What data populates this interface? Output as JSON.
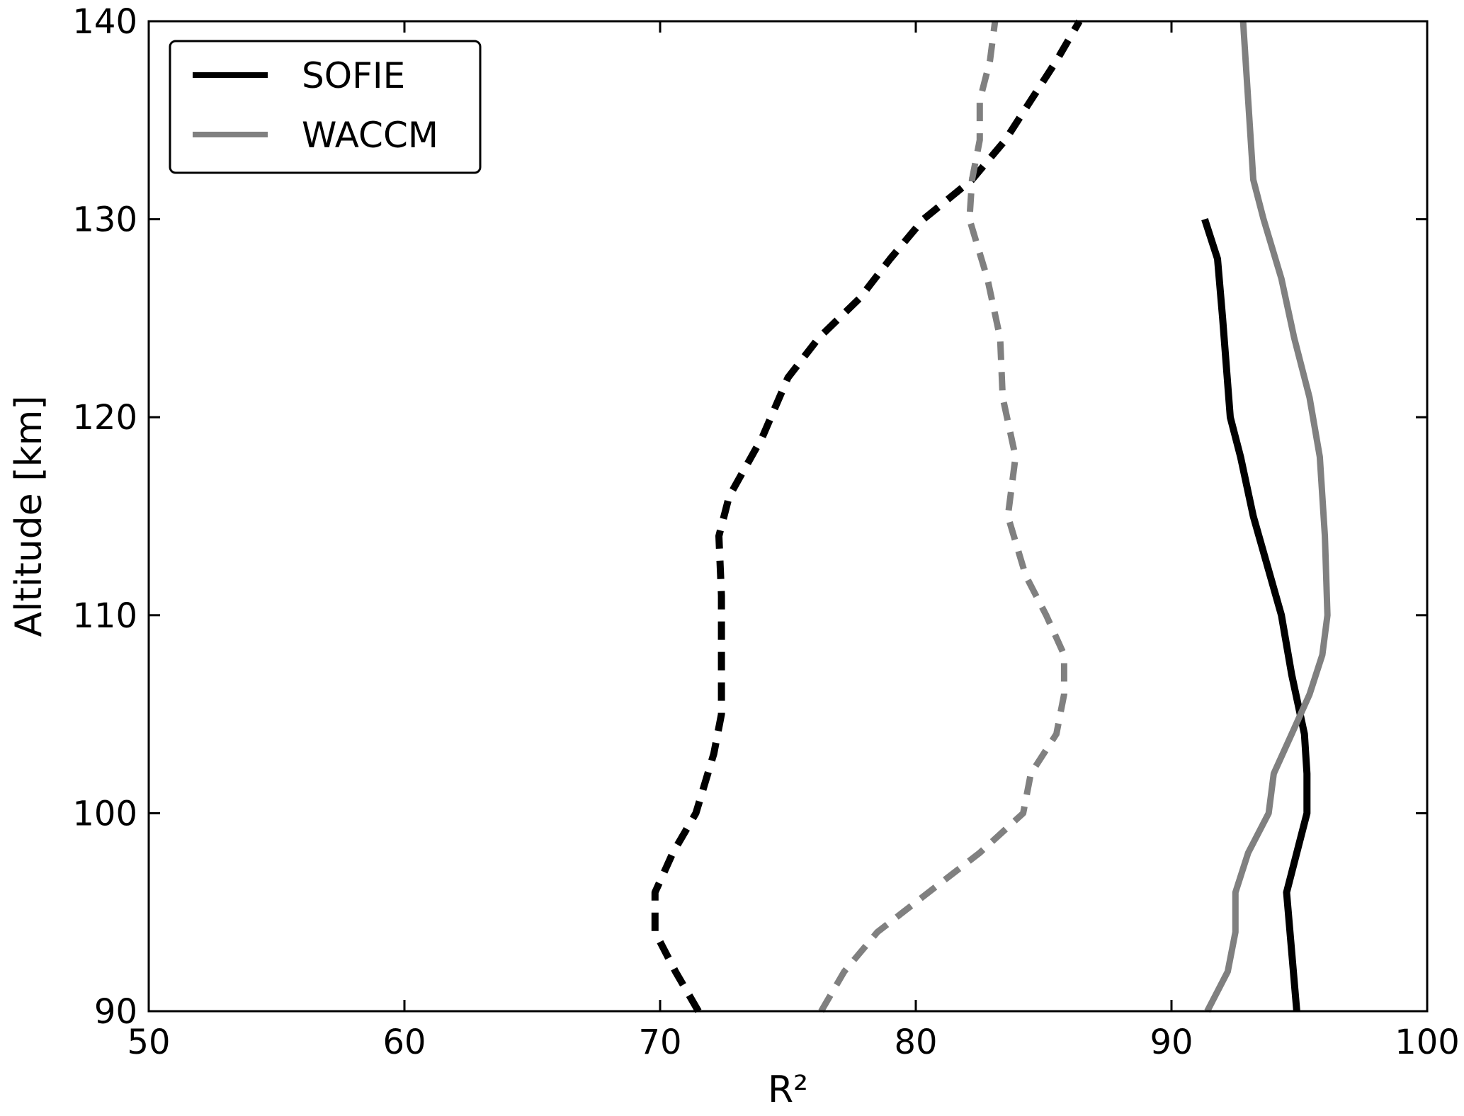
{
  "chart_data": {
    "type": "line",
    "title": "",
    "xlabel": "R²",
    "ylabel": "Altitude [km]",
    "xlim": [
      50,
      100
    ],
    "ylim": [
      90,
      140
    ],
    "xticks": [
      "50",
      "60",
      "70",
      "80",
      "90",
      "100"
    ],
    "yticks": [
      "90",
      "100",
      "110",
      "120",
      "130",
      "140"
    ],
    "grid": false,
    "legend": {
      "position": "top-left",
      "entries": [
        {
          "label": "SOFIE",
          "color": "#000000"
        },
        {
          "label": "WACCM",
          "color": "#808080"
        }
      ]
    },
    "series": [
      {
        "name": "SOFIE",
        "color": "#000000",
        "dash": "solid",
        "points": [
          [
            94.9,
            90
          ],
          [
            94.7,
            93
          ],
          [
            94.5,
            96
          ],
          [
            94.9,
            98
          ],
          [
            95.3,
            100
          ],
          [
            95.3,
            102
          ],
          [
            95.2,
            104
          ],
          [
            94.7,
            107
          ],
          [
            94.3,
            110
          ],
          [
            93.2,
            115
          ],
          [
            92.7,
            118
          ],
          [
            92.3,
            120
          ],
          [
            92.0,
            125
          ],
          [
            91.8,
            128
          ],
          [
            91.3,
            130
          ]
        ]
      },
      {
        "name": "WACCM",
        "color": "#808080",
        "dash": "solid",
        "points": [
          [
            91.4,
            90
          ],
          [
            92.2,
            92
          ],
          [
            92.5,
            94
          ],
          [
            92.5,
            96
          ],
          [
            93.0,
            98
          ],
          [
            93.8,
            100
          ],
          [
            94.0,
            102
          ],
          [
            94.7,
            104
          ],
          [
            95.4,
            106
          ],
          [
            95.9,
            108
          ],
          [
            96.1,
            110
          ],
          [
            96.0,
            114
          ],
          [
            95.8,
            118
          ],
          [
            95.4,
            121
          ],
          [
            94.8,
            124
          ],
          [
            94.3,
            127
          ],
          [
            93.6,
            130
          ],
          [
            93.2,
            132
          ],
          [
            93.1,
            134
          ],
          [
            92.9,
            138
          ],
          [
            92.8,
            140
          ]
        ]
      },
      {
        "name": "",
        "color": "#000000",
        "dash": "dashed",
        "points": [
          [
            71.5,
            90
          ],
          [
            70.6,
            92
          ],
          [
            69.8,
            94
          ],
          [
            69.8,
            96
          ],
          [
            70.5,
            98
          ],
          [
            71.4,
            100
          ],
          [
            72.1,
            103
          ],
          [
            72.4,
            105
          ],
          [
            72.4,
            108
          ],
          [
            72.4,
            111
          ],
          [
            72.3,
            114
          ],
          [
            72.7,
            116
          ],
          [
            74.0,
            119
          ],
          [
            75.0,
            122
          ],
          [
            76.2,
            124
          ],
          [
            77.8,
            126
          ],
          [
            79.0,
            128
          ],
          [
            80.3,
            130
          ],
          [
            82.2,
            132
          ],
          [
            83.5,
            134
          ],
          [
            84.5,
            136
          ],
          [
            85.5,
            138
          ],
          [
            86.4,
            140
          ]
        ]
      },
      {
        "name": "",
        "color": "#808080",
        "dash": "dashed",
        "points": [
          [
            76.3,
            90
          ],
          [
            77.2,
            92
          ],
          [
            78.5,
            94
          ],
          [
            80.5,
            96
          ],
          [
            82.5,
            98
          ],
          [
            84.2,
            100
          ],
          [
            84.5,
            102
          ],
          [
            85.5,
            104
          ],
          [
            85.8,
            106
          ],
          [
            85.8,
            108
          ],
          [
            85.1,
            110
          ],
          [
            84.3,
            112
          ],
          [
            83.6,
            115
          ],
          [
            83.9,
            118
          ],
          [
            83.4,
            121
          ],
          [
            83.3,
            124
          ],
          [
            82.8,
            127
          ],
          [
            82.1,
            130
          ],
          [
            82.2,
            132
          ],
          [
            82.5,
            134
          ],
          [
            82.5,
            136
          ],
          [
            82.9,
            138
          ],
          [
            83.1,
            140
          ]
        ]
      }
    ]
  }
}
